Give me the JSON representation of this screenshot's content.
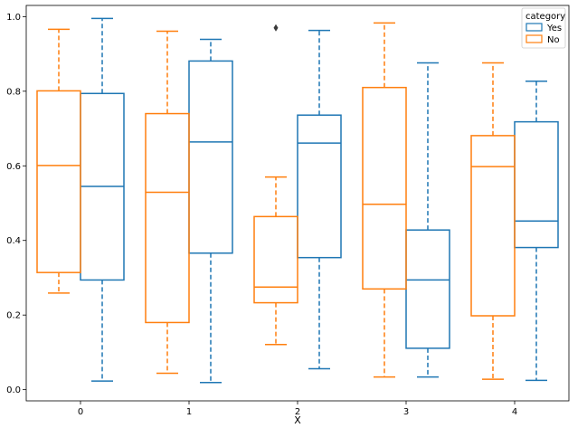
{
  "chart_data": {
    "type": "boxplot",
    "title": "",
    "xlabel": "X",
    "ylabel": "",
    "categories": [
      "0",
      "1",
      "2",
      "3",
      "4"
    ],
    "ylim": [
      -0.03,
      1.03
    ],
    "yticks": [
      "0.0",
      "0.2",
      "0.4",
      "0.6",
      "0.8",
      "1.0"
    ],
    "legend": {
      "title": "category",
      "position": "top-right",
      "entries": [
        "Yes",
        "No"
      ]
    },
    "series": [
      {
        "name": "Yes",
        "color": "#1f77b4",
        "boxes": [
          {
            "category": "0",
            "whislo": 0.023,
            "q1": 0.294,
            "med": 0.545,
            "q3": 0.794,
            "whishi": 0.995,
            "fliers": []
          },
          {
            "category": "1",
            "whislo": 0.019,
            "q1": 0.366,
            "med": 0.664,
            "q3": 0.881,
            "whishi": 0.939,
            "fliers": []
          },
          {
            "category": "2",
            "whislo": 0.056,
            "q1": 0.354,
            "med": 0.661,
            "q3": 0.736,
            "whishi": 0.963,
            "fliers": []
          },
          {
            "category": "3",
            "whislo": 0.034,
            "q1": 0.111,
            "med": 0.294,
            "q3": 0.428,
            "whishi": 0.876,
            "fliers": []
          },
          {
            "category": "4",
            "whislo": 0.025,
            "q1": 0.381,
            "med": 0.452,
            "q3": 0.718,
            "whishi": 0.827,
            "fliers": []
          }
        ]
      },
      {
        "name": "No",
        "color": "#ff7f0e",
        "boxes": [
          {
            "category": "0",
            "whislo": 0.259,
            "q1": 0.314,
            "med": 0.601,
            "q3": 0.801,
            "whishi": 0.966,
            "fliers": []
          },
          {
            "category": "1",
            "whislo": 0.044,
            "q1": 0.18,
            "med": 0.529,
            "q3": 0.74,
            "whishi": 0.961,
            "fliers": []
          },
          {
            "category": "2",
            "whislo": 0.121,
            "q1": 0.233,
            "med": 0.275,
            "q3": 0.464,
            "whishi": 0.57,
            "fliers": [
              0.97
            ]
          },
          {
            "category": "3",
            "whislo": 0.034,
            "q1": 0.27,
            "med": 0.497,
            "q3": 0.81,
            "whishi": 0.983,
            "fliers": []
          },
          {
            "category": "4",
            "whislo": 0.028,
            "q1": 0.198,
            "med": 0.598,
            "q3": 0.681,
            "whishi": 0.876,
            "fliers": []
          }
        ]
      }
    ]
  }
}
